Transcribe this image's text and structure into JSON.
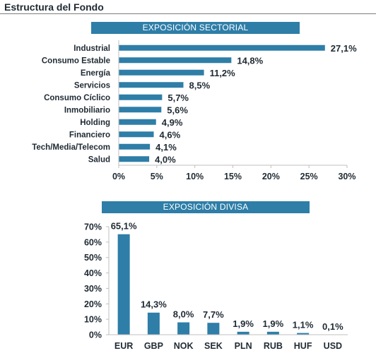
{
  "page": {
    "title": "Estructura del Fondo"
  },
  "colors": {
    "bar": "#2e7ea8",
    "banner": "#2e7ea8",
    "axis": "#bfbfbf",
    "text": "#1f2a33"
  },
  "chart_data": [
    {
      "type": "bar",
      "orientation": "horizontal",
      "title": "EXPOSICIÓN SECTORIAL",
      "categories": [
        "Industrial",
        "Consumo Estable",
        "Energía",
        "Servicios",
        "Consumo Cíclico",
        "Inmobiliario",
        "Holding",
        "Financiero",
        "Tech/Media/Telecom",
        "Salud"
      ],
      "values": [
        27.1,
        14.8,
        11.2,
        8.5,
        5.7,
        5.6,
        4.9,
        4.6,
        4.1,
        4.0
      ],
      "value_labels": [
        "27,1%",
        "14,8%",
        "11,2%",
        "8,5%",
        "5,7%",
        "5,6%",
        "4,9%",
        "4,6%",
        "4,1%",
        "4,0%"
      ],
      "xlim": [
        0,
        30
      ],
      "ticks": [
        0,
        5,
        10,
        15,
        20,
        25,
        30
      ],
      "tick_labels": [
        "0%",
        "5%",
        "10%",
        "15%",
        "20%",
        "25%",
        "30%"
      ],
      "xlabel": "",
      "ylabel": "",
      "grid": false
    },
    {
      "type": "bar",
      "orientation": "vertical",
      "title": "EXPOSICIÓN DIVISA",
      "categories": [
        "EUR",
        "GBP",
        "NOK",
        "SEK",
        "PLN",
        "RUB",
        "HUF",
        "USD"
      ],
      "values": [
        65.1,
        14.3,
        8.0,
        7.7,
        1.9,
        1.9,
        1.1,
        0.1
      ],
      "value_labels": [
        "65,1%",
        "14,3%",
        "8,0%",
        "7,7%",
        "1,9%",
        "1,9%",
        "1,1%",
        "0,1%"
      ],
      "ylim": [
        0,
        70
      ],
      "ticks": [
        0,
        10,
        20,
        30,
        40,
        50,
        60,
        70
      ],
      "tick_labels": [
        "0%",
        "10%",
        "20%",
        "30%",
        "40%",
        "50%",
        "60%",
        "70%"
      ],
      "xlabel": "",
      "ylabel": "",
      "grid": false
    }
  ]
}
